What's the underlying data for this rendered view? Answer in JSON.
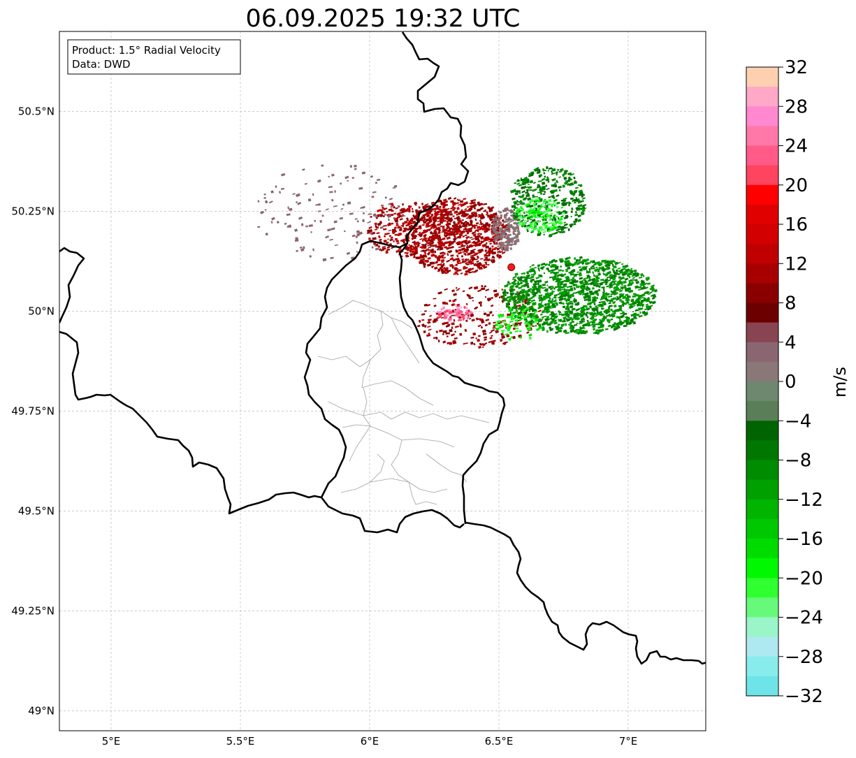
{
  "title": "06.09.2025 19:32 UTC",
  "info_box": {
    "product": "Product: 1.5° Radial Velocity",
    "data": "Data: DWD"
  },
  "map": {
    "lon_range": [
      4.8,
      7.3
    ],
    "lat_range": [
      48.95,
      50.7
    ],
    "lon_ticks": [
      {
        "value": 5.0,
        "label": "5°E"
      },
      {
        "value": 5.5,
        "label": "5.5°E"
      },
      {
        "value": 6.0,
        "label": "6°E"
      },
      {
        "value": 6.5,
        "label": "6.5°E"
      },
      {
        "value": 7.0,
        "label": "7°E"
      }
    ],
    "lat_ticks": [
      {
        "value": 50.5,
        "label": "50.5°N"
      },
      {
        "value": 50.25,
        "label": "50.25°N"
      },
      {
        "value": 50.0,
        "label": "50°N"
      },
      {
        "value": 49.75,
        "label": "49.75°N"
      },
      {
        "value": 49.5,
        "label": "49.5°N"
      },
      {
        "value": 49.25,
        "label": "49.25°N"
      },
      {
        "value": 49.0,
        "label": "49°N"
      }
    ],
    "gridlines": true,
    "radar_site": {
      "lon": 6.548,
      "lat": 50.11
    },
    "border_color": "#000000",
    "admin_border_color": "#999999",
    "radar_marker_color": "#ee1c1c"
  },
  "colorbar": {
    "label": "m/s",
    "min": -32,
    "max": 32,
    "tick_labels": [
      {
        "value": 32,
        "label": "32"
      },
      {
        "value": 28,
        "label": "28"
      },
      {
        "value": 24,
        "label": "24"
      },
      {
        "value": 20,
        "label": "20"
      },
      {
        "value": 16,
        "label": "16"
      },
      {
        "value": 12,
        "label": "12"
      },
      {
        "value": 8,
        "label": "8"
      },
      {
        "value": 4,
        "label": "4"
      },
      {
        "value": 0,
        "label": "0"
      },
      {
        "value": -4,
        "label": "−4"
      },
      {
        "value": -8,
        "label": "−8"
      },
      {
        "value": -12,
        "label": "−12"
      },
      {
        "value": -16,
        "label": "−16"
      },
      {
        "value": -20,
        "label": "−20"
      },
      {
        "value": -24,
        "label": "−24"
      },
      {
        "value": -28,
        "label": "−28"
      },
      {
        "value": -32,
        "label": "−32"
      }
    ],
    "bins": [
      {
        "from": 30,
        "to": 32,
        "color": "#ffd0b0"
      },
      {
        "from": 28,
        "to": 30,
        "color": "#ffa8c8"
      },
      {
        "from": 26,
        "to": 28,
        "color": "#ff88d0"
      },
      {
        "from": 24,
        "to": 26,
        "color": "#ff78a8"
      },
      {
        "from": 22,
        "to": 24,
        "color": "#ff5a88"
      },
      {
        "from": 20,
        "to": 22,
        "color": "#ff4460"
      },
      {
        "from": 18,
        "to": 20,
        "color": "#ff0000"
      },
      {
        "from": 16,
        "to": 18,
        "color": "#e00000"
      },
      {
        "from": 14,
        "to": 16,
        "color": "#d20000"
      },
      {
        "from": 12,
        "to": 14,
        "color": "#c00000"
      },
      {
        "from": 10,
        "to": 12,
        "color": "#a80000"
      },
      {
        "from": 8,
        "to": 10,
        "color": "#8a0000"
      },
      {
        "from": 6,
        "to": 8,
        "color": "#6c0000"
      },
      {
        "from": 4,
        "to": 6,
        "color": "#884450"
      },
      {
        "from": 2,
        "to": 4,
        "color": "#8a6670"
      },
      {
        "from": 0,
        "to": 2,
        "color": "#8a7878"
      },
      {
        "from": -2,
        "to": 0,
        "color": "#6e8870"
      },
      {
        "from": -4,
        "to": -2,
        "color": "#5a7e58"
      },
      {
        "from": -6,
        "to": -4,
        "color": "#006400"
      },
      {
        "from": -8,
        "to": -6,
        "color": "#007800"
      },
      {
        "from": -10,
        "to": -8,
        "color": "#008c00"
      },
      {
        "from": -12,
        "to": -10,
        "color": "#00a000"
      },
      {
        "from": -14,
        "to": -12,
        "color": "#00b400"
      },
      {
        "from": -16,
        "to": -14,
        "color": "#00c800"
      },
      {
        "from": -18,
        "to": -16,
        "color": "#00dc00"
      },
      {
        "from": -20,
        "to": -18,
        "color": "#00f800"
      },
      {
        "from": -22,
        "to": -20,
        "color": "#30ff30"
      },
      {
        "from": -24,
        "to": -22,
        "color": "#66f97a"
      },
      {
        "from": -26,
        "to": -24,
        "color": "#9af5c8"
      },
      {
        "from": -28,
        "to": -26,
        "color": "#aee8f0"
      },
      {
        "from": -30,
        "to": -28,
        "color": "#88ecec"
      },
      {
        "from": -32,
        "to": -30,
        "color": "#6ee4e8"
      }
    ]
  }
}
